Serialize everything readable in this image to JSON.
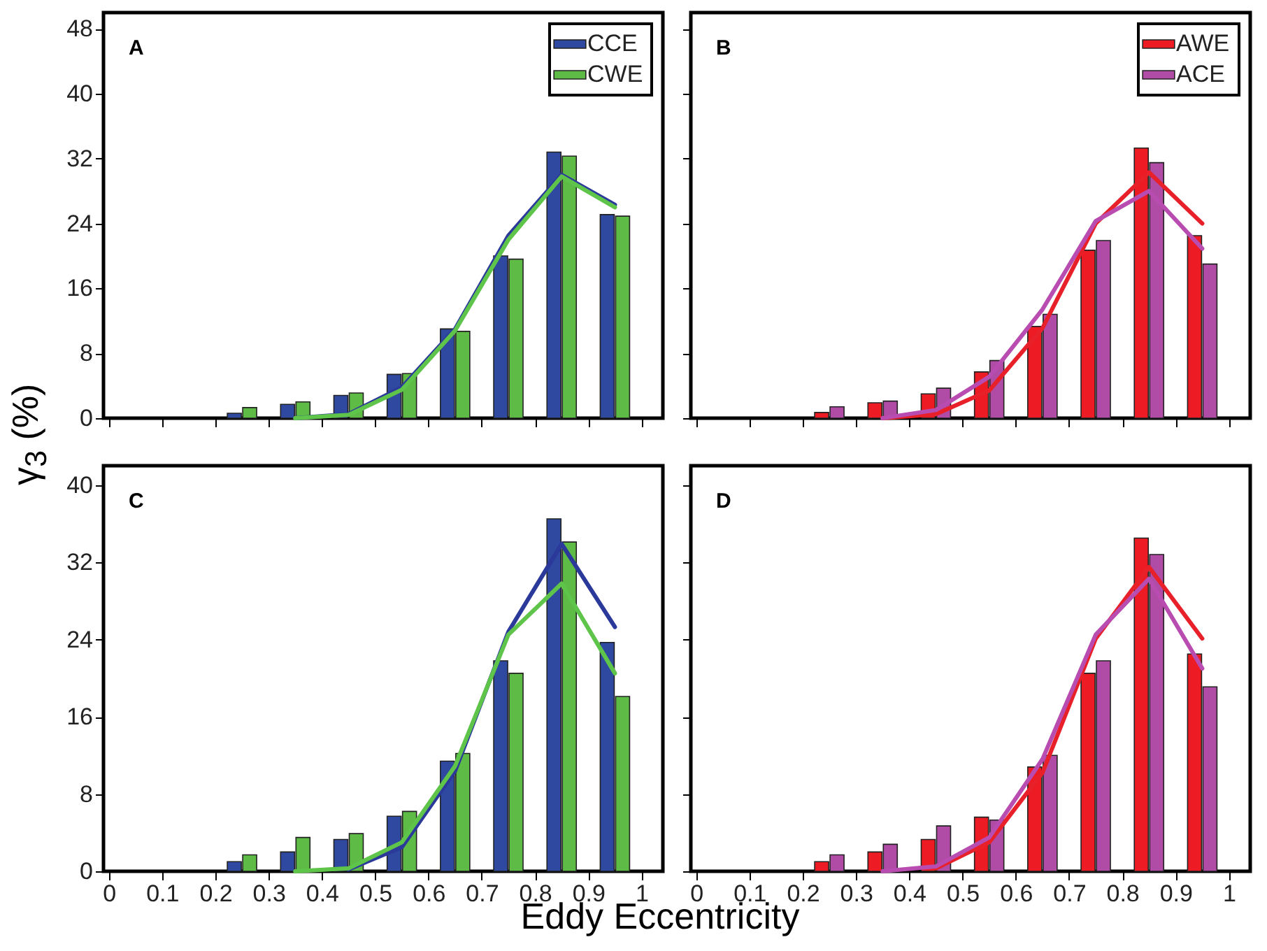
{
  "chart_data": [
    {
      "type": "bar",
      "x": [
        0.25,
        0.35,
        0.45,
        0.55,
        0.65,
        0.75,
        0.85,
        0.95
      ],
      "ylabel": "γ$_{3}$ (%)",
      "annotations": [
        "A"
      ],
      "xlim": [
        -0.01,
        1.04
      ],
      "xticks": [
        0,
        0.1,
        0.2,
        0.3,
        0.4,
        0.5,
        0.6,
        0.7,
        0.8,
        0.9,
        1
      ],
      "ylim": [
        0,
        50
      ],
      "yticks": [
        0,
        8,
        16,
        24,
        32,
        40,
        48
      ],
      "tick_labels": "y",
      "grid": false,
      "legend": "top right",
      "series": [
        {
          "name": "CCE",
          "color": "#2f48a0",
          "values": [
            0.6,
            1.7,
            2.8,
            5.4,
            11,
            20,
            32.8,
            25.1
          ]
        },
        {
          "name": "CWE",
          "color": "#5dbb46",
          "values": [
            1.3,
            2.0,
            3.1,
            5.5,
            10.7,
            19.6,
            32.3,
            24.9
          ]
        },
        {
          "type": "line",
          "color": "#2b3a9a",
          "x": [
            0.35,
            0.45,
            0.55,
            0.65,
            0.75,
            0.85,
            0.95
          ],
          "values": [
            0,
            0.5,
            3.8,
            11,
            22.5,
            30,
            26.3
          ]
        },
        {
          "type": "line",
          "color": "#5ec44a",
          "x": [
            0.35,
            0.45,
            0.55,
            0.65,
            0.75,
            0.85,
            0.95
          ],
          "values": [
            0,
            0.4,
            3.5,
            10.8,
            22,
            29.8,
            26
          ]
        }
      ]
    },
    {
      "type": "bar",
      "x": [
        0.25,
        0.35,
        0.45,
        0.55,
        0.65,
        0.75,
        0.85,
        0.95
      ],
      "annotations": [
        "B"
      ],
      "xlim": [
        -0.01,
        1.04
      ],
      "xticks": [
        0,
        0.1,
        0.2,
        0.3,
        0.4,
        0.5,
        0.6,
        0.7,
        0.8,
        0.9,
        1
      ],
      "ylim": [
        0,
        50
      ],
      "yticks": [
        0,
        8,
        16,
        24,
        32,
        40,
        48
      ],
      "tick_labels": false,
      "grid": false,
      "legend": "top right",
      "series": [
        {
          "name": "AWE",
          "color": "#ed1c24",
          "values": [
            0.7,
            1.9,
            3.0,
            5.7,
            11.3,
            20.7,
            33.3,
            22.5
          ]
        },
        {
          "name": "ACE",
          "color": "#b04ca6",
          "values": [
            1.4,
            2.1,
            3.7,
            7.1,
            12.8,
            21.9,
            31.5,
            19
          ]
        },
        {
          "type": "line",
          "color": "#e8202a",
          "x": [
            0.35,
            0.45,
            0.55,
            0.65,
            0.75,
            0.85,
            0.95
          ],
          "values": [
            0,
            0.5,
            3.4,
            11.1,
            24,
            30.3,
            24
          ]
        },
        {
          "type": "line",
          "color": "#b84cb0",
          "x": [
            0.35,
            0.45,
            0.55,
            0.65,
            0.75,
            0.85,
            0.95
          ],
          "values": [
            0,
            1,
            5.1,
            13.4,
            24.3,
            28,
            20.9
          ]
        }
      ]
    },
    {
      "type": "bar",
      "x": [
        0.25,
        0.35,
        0.45,
        0.55,
        0.65,
        0.75,
        0.85,
        0.95
      ],
      "xlabel": "Eddy Eccentricity",
      "annotations": [
        "C"
      ],
      "xlim": [
        -0.01,
        1.04
      ],
      "xticks": [
        0,
        0.1,
        0.2,
        0.3,
        0.4,
        0.5,
        0.6,
        0.7,
        0.8,
        0.9,
        1
      ],
      "ylim": [
        0,
        42
      ],
      "yticks": [
        0,
        8,
        16,
        24,
        32,
        40
      ],
      "grid": false,
      "series": [
        {
          "color": "#2f48a0",
          "values": [
            1.0,
            2.0,
            3.3,
            5.7,
            11.4,
            21.8,
            36.5,
            23.7
          ]
        },
        {
          "color": "#5dbb46",
          "values": [
            1.7,
            3.5,
            3.9,
            6.2,
            12.2,
            20.5,
            34.1,
            18.1
          ]
        },
        {
          "type": "line",
          "color": "#2b3a9a",
          "x": [
            0.45,
            0.55,
            0.65,
            0.75,
            0.85,
            0.95
          ],
          "values": [
            0.2,
            2.5,
            10.4,
            24.8,
            33.9,
            25.3
          ]
        },
        {
          "type": "line",
          "color": "#5ec44a",
          "x": [
            0.35,
            0.45,
            0.55,
            0.65,
            0.75,
            0.85,
            0.95
          ],
          "values": [
            0,
            0.3,
            3.0,
            10.9,
            24.5,
            29.8,
            20.5
          ]
        }
      ]
    },
    {
      "type": "bar",
      "x": [
        0.25,
        0.35,
        0.45,
        0.55,
        0.65,
        0.75,
        0.85,
        0.95
      ],
      "annotations": [
        "D"
      ],
      "xlim": [
        -0.01,
        1.04
      ],
      "xticks": [
        0,
        0.1,
        0.2,
        0.3,
        0.4,
        0.5,
        0.6,
        0.7,
        0.8,
        0.9,
        1
      ],
      "ylim": [
        0,
        42
      ],
      "yticks": [
        0,
        8,
        16,
        24,
        32,
        40
      ],
      "tick_labels": "x",
      "grid": false,
      "series": [
        {
          "color": "#ed1c24",
          "values": [
            1.0,
            2.0,
            3.3,
            5.6,
            10.8,
            20.5,
            34.5,
            22.5
          ]
        },
        {
          "color": "#b04ca6",
          "values": [
            1.7,
            2.8,
            4.7,
            5.3,
            12,
            21.8,
            32.8,
            19.1
          ]
        },
        {
          "type": "line",
          "color": "#e8202a",
          "x": [
            0.45,
            0.55,
            0.65,
            0.75,
            0.85,
            0.95
          ],
          "values": [
            0.3,
            3.0,
            10.2,
            24.1,
            31.5,
            24.1
          ]
        },
        {
          "type": "line",
          "color": "#b84cb0",
          "x": [
            0.35,
            0.45,
            0.55,
            0.65,
            0.75,
            0.85,
            0.95
          ],
          "values": [
            0,
            0.5,
            3.5,
            11.6,
            24.5,
            30.3,
            21
          ]
        }
      ]
    }
  ]
}
